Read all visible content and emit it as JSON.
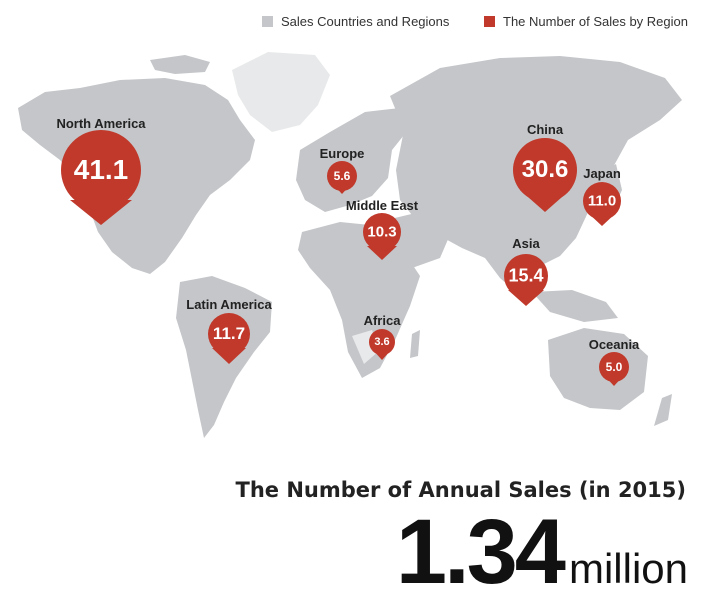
{
  "legend": {
    "countries": {
      "label": "Sales Countries and Regions",
      "color": "#c4c6c9"
    },
    "sales": {
      "label": "The Number of Sales by Region",
      "color": "#c0392b"
    }
  },
  "colors": {
    "land_sales": "#c4c6c9",
    "land_other": "#e8e9ea",
    "pin": "#c0392b"
  },
  "regions": [
    {
      "name": "North America",
      "value": "41.1"
    },
    {
      "name": "China",
      "value": "30.6"
    },
    {
      "name": "Asia",
      "value": "15.4"
    },
    {
      "name": "Latin America",
      "value": "11.7"
    },
    {
      "name": "Japan",
      "value": "11.0"
    },
    {
      "name": "Middle East",
      "value": "10.3"
    },
    {
      "name": "Europe",
      "value": "5.6"
    },
    {
      "name": "Oceania",
      "value": "5.0"
    },
    {
      "name": "Africa",
      "value": "3.6"
    }
  ],
  "summary": {
    "title": "The Number of Annual Sales (in 2015)",
    "total": "1.34",
    "unit": "million"
  }
}
